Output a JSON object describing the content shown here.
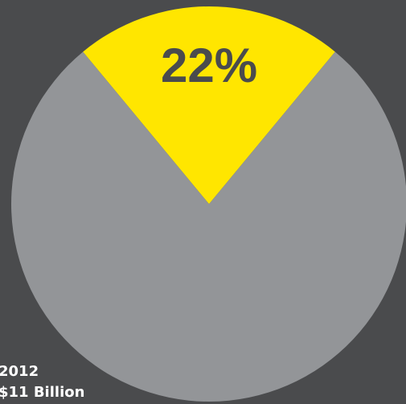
{
  "chart_data": {
    "type": "pie",
    "slices": [
      {
        "label": "",
        "value": 22,
        "display": "22%",
        "color": "#ffe600"
      },
      {
        "label": "",
        "value": 78,
        "display": "",
        "color": "#939598"
      }
    ],
    "year": "2012",
    "total": "$11 Billion"
  },
  "colors": {
    "background": "#4a4b4d",
    "highlight": "#ffe600",
    "rest": "#939598",
    "label": "#4a4b4d"
  }
}
